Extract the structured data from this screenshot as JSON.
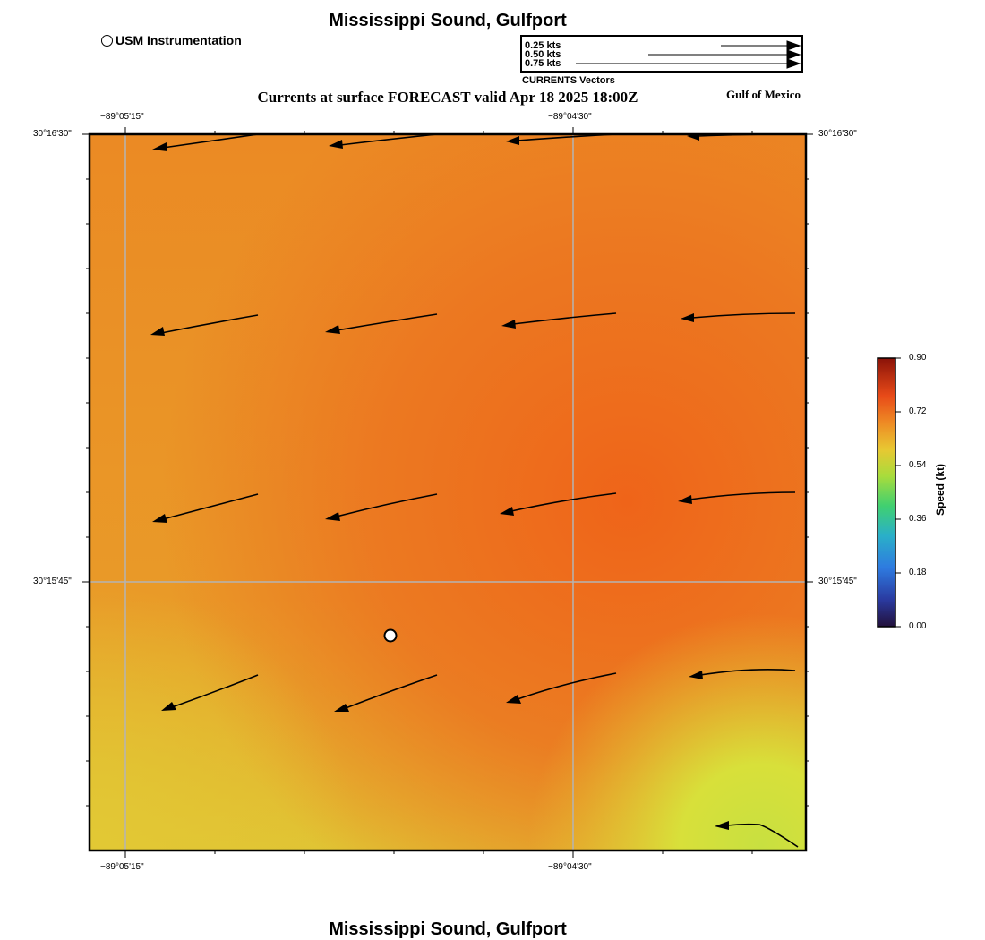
{
  "header": {
    "title": "Mississippi Sound, Gulfport",
    "subtitle": "Currents at surface FORECAST valid Apr 18 2025 18:00Z",
    "region_label": "Gulf of Mexico"
  },
  "footer": {
    "title": "Mississippi Sound, Gulfport"
  },
  "station_legend": {
    "label": "USM Instrumentation"
  },
  "vector_legend": {
    "caption": "CURRENTS Vectors",
    "entries": [
      {
        "label": "0.25 kts",
        "speed_kt": 0.25
      },
      {
        "label": "0.50 kts",
        "speed_kt": 0.5
      },
      {
        "label": "0.75 kts",
        "speed_kt": 0.75
      }
    ]
  },
  "axes": {
    "top_lon_labels": [
      "−89°05'15\"",
      "−89°04'30\""
    ],
    "bottom_lon_labels": [
      "−89°05'15\"",
      "−89°04'30\""
    ],
    "left_lat_labels": [
      "30°16'30\"",
      "30°15'45\""
    ],
    "right_lat_labels": [
      "30°16'30\"",
      "30°15'45\""
    ]
  },
  "colorbar": {
    "title": "Speed (kt)",
    "ticks": [
      "0.90",
      "0.72",
      "0.54",
      "0.36",
      "0.18",
      "0.00"
    ],
    "min": 0.0,
    "max": 0.9
  },
  "colors": {
    "field_high": "#ef6419",
    "field_mid": "#eb8a24",
    "field_low": "#e9a82a",
    "field_yellow": "#e3cc34",
    "field_green": "#c8e040",
    "grid": "#b4b4b4"
  },
  "station": {
    "name": "USM Instrumentation"
  }
}
